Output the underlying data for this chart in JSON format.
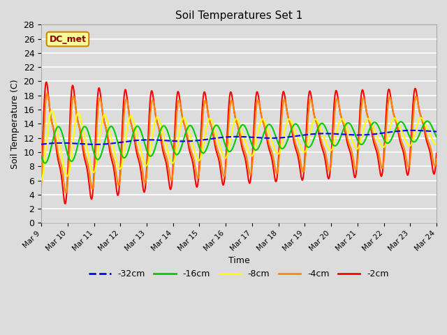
{
  "title": "Soil Temperatures Set 1",
  "xlabel": "Time",
  "ylabel": "Soil Temperature (C)",
  "ylim": [
    0,
    28
  ],
  "xlim_days": [
    9,
    24
  ],
  "background_color": "#dcdcdc",
  "plot_bg_color": "#dcdcdc",
  "annotation_text": "DC_met",
  "annotation_bg": "#ffff99",
  "annotation_border": "#cc8800",
  "series": {
    "-32cm": {
      "color": "#0000ff",
      "linestyle": "--",
      "linewidth": 1.5,
      "zorder": 5
    },
    "-16cm": {
      "color": "#00cc00",
      "linestyle": "-",
      "linewidth": 1.5,
      "zorder": 4
    },
    "-8cm": {
      "color": "#ffff00",
      "linestyle": "-",
      "linewidth": 1.5,
      "zorder": 3
    },
    "-4cm": {
      "color": "#ff8800",
      "linestyle": "-",
      "linewidth": 1.5,
      "zorder": 2
    },
    "-2cm": {
      "color": "#ff0000",
      "linestyle": "-",
      "linewidth": 1.5,
      "zorder": 1
    }
  },
  "tick_labels": [
    "Mar 9",
    "Mar 10",
    "Mar 11",
    "Mar 12",
    "Mar 13",
    "Mar 14",
    "Mar 15",
    "Mar 16",
    "Mar 17",
    "Mar 18",
    "Mar 19",
    "Mar 20",
    "Mar 21",
    "Mar 22",
    "Mar 23",
    "Mar 24"
  ],
  "tick_positions": [
    9,
    10,
    11,
    12,
    13,
    14,
    15,
    16,
    17,
    18,
    19,
    20,
    21,
    22,
    23,
    24
  ],
  "base_start": 11.0,
  "base_end": 13.0,
  "period_hours": 24,
  "total_days": 15
}
